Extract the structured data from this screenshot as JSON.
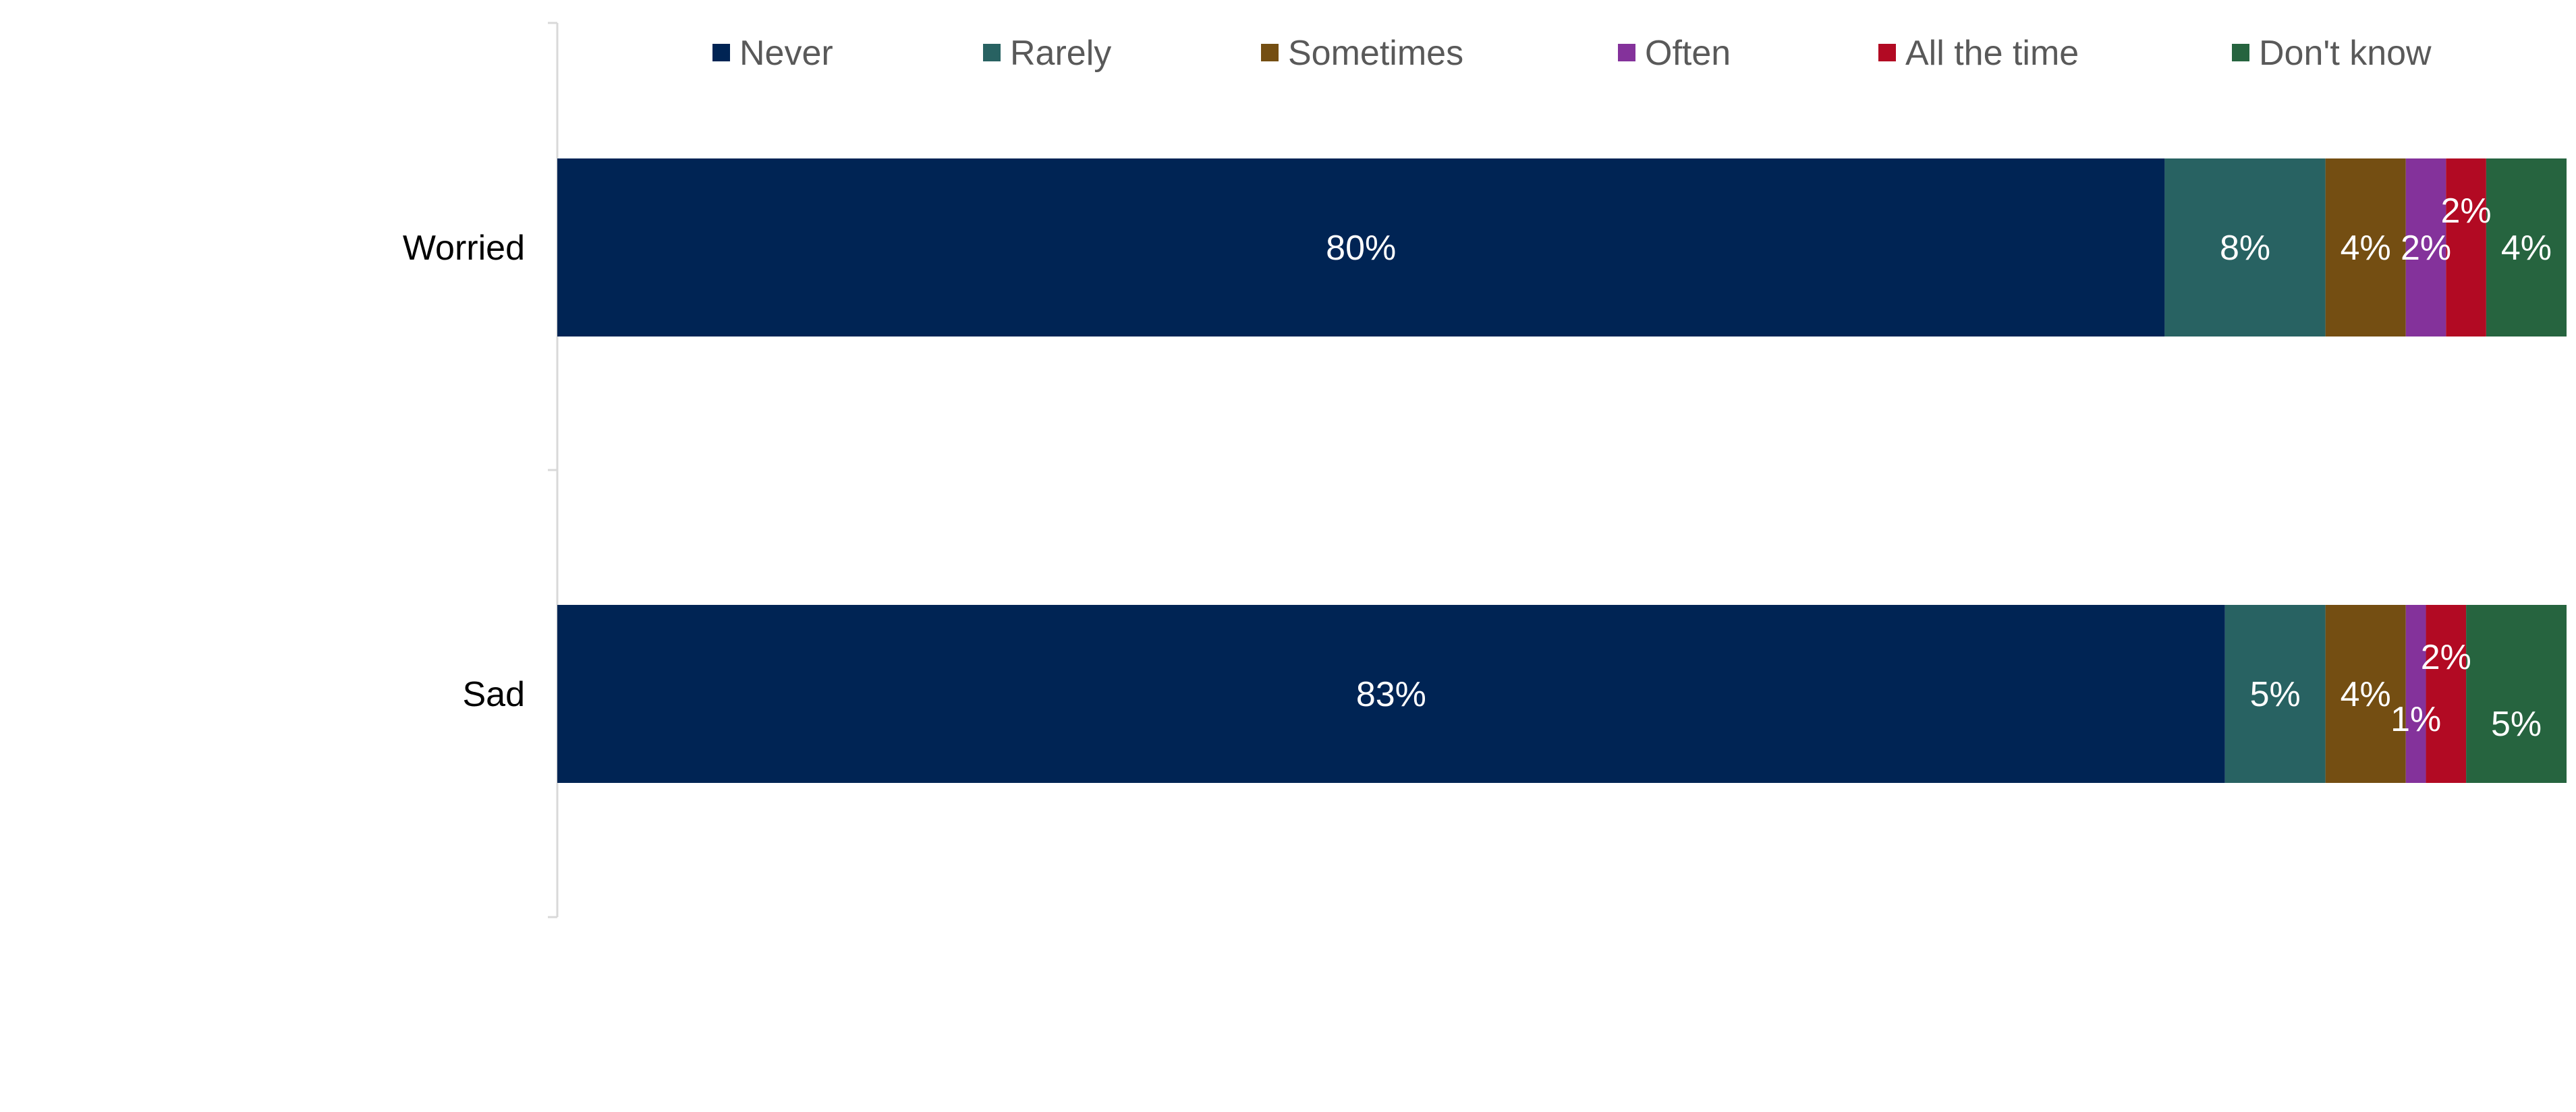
{
  "chart_data": {
    "type": "bar",
    "orientation": "horizontal",
    "stacked": true,
    "categories": [
      "Worried",
      "Sad"
    ],
    "series": [
      {
        "name": "Never",
        "color": "#002454",
        "values": [
          80,
          83
        ],
        "labels": [
          "80%",
          "83%"
        ]
      },
      {
        "name": "Rarely",
        "color": "#286262",
        "values": [
          8,
          5
        ],
        "labels": [
          "8%",
          "5%"
        ]
      },
      {
        "name": "Sometimes",
        "color": "#744e12",
        "values": [
          4,
          4
        ],
        "labels": [
          "4%",
          "4%"
        ]
      },
      {
        "name": "Often",
        "color": "#84329b",
        "values": [
          2,
          1
        ],
        "labels": [
          "2%",
          "1%"
        ]
      },
      {
        "name": "All the time",
        "color": "#b20a23",
        "values": [
          2,
          2
        ],
        "labels": [
          "2%",
          "2%"
        ]
      },
      {
        "name": "Don't know",
        "color": "#26643f",
        "values": [
          4,
          5
        ],
        "labels": [
          "4%",
          "5%"
        ]
      }
    ],
    "xlim": [
      0,
      100
    ],
    "legend": "top",
    "grid": false
  }
}
